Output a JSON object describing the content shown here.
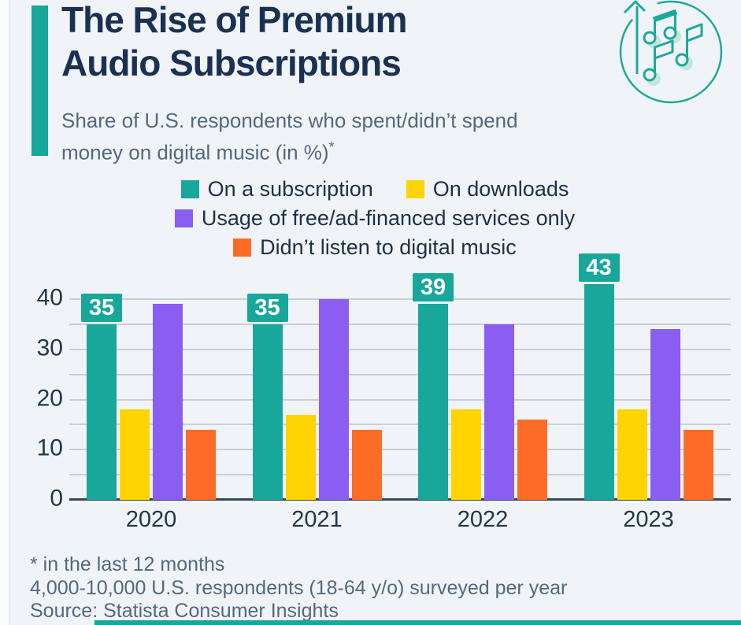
{
  "page": {
    "title_lines": [
      "The Rise of Premium",
      "Audio Subscriptions"
    ],
    "subtitle_line1": "Share of U.S. respondents who spent/didn’t spend",
    "subtitle_line2": "money on digital music (in %)",
    "subtitle_marker": "*"
  },
  "colors": {
    "accent_teal": "#18a79a",
    "yellow": "#ffd402",
    "purple": "#8a5ef0",
    "orange": "#fd6c26",
    "title_navy": "#1b3152",
    "muted_text": "#54687f",
    "background": "#f0f4f8"
  },
  "icon": {
    "name": "music-notes-growth-icon",
    "stroke": "#1fa89a",
    "shadow_fill": "#c5e6df"
  },
  "legend": [
    {
      "label": "On a subscription",
      "color": "#18a79a"
    },
    {
      "label": "On downloads",
      "color": "#ffd402"
    },
    {
      "label": "Usage of free/ad-financed services only",
      "color": "#8a5ef0"
    },
    {
      "label": "Didn’t listen to digital music",
      "color": "#fd6c26"
    }
  ],
  "chart_data": {
    "type": "bar",
    "title": "The Rise of Premium Audio Subscriptions",
    "subtitle": "Share of U.S. respondents who spent/didn’t spend money on digital music (in %)*",
    "categories": [
      "2020",
      "2021",
      "2022",
      "2023"
    ],
    "series": [
      {
        "name": "On a subscription",
        "color": "#18a79a",
        "values": [
          35,
          35,
          39,
          43
        ],
        "show_value_labels": true
      },
      {
        "name": "On downloads",
        "color": "#ffd402",
        "values": [
          18,
          17,
          18,
          18
        ],
        "show_value_labels": false
      },
      {
        "name": "Usage of free/ad-financed services only",
        "color": "#8a5ef0",
        "values": [
          39,
          40,
          35,
          34
        ],
        "show_value_labels": false
      },
      {
        "name": "Didn’t listen to digital music",
        "color": "#fd6c26",
        "values": [
          14,
          14,
          16,
          14
        ],
        "show_value_labels": false
      }
    ],
    "xlabel": "",
    "ylabel": "",
    "ylim": [
      0,
      43
    ],
    "yticks": [
      0,
      10,
      20,
      30,
      40
    ],
    "gridline_step": 5,
    "grid": true,
    "legend_position": "top"
  },
  "footnotes": [
    "* in the last 12 months",
    "4,000-10,000 U.S. respondents (18-64 y/o) surveyed per year",
    "Source: Statista Consumer Insights"
  ]
}
